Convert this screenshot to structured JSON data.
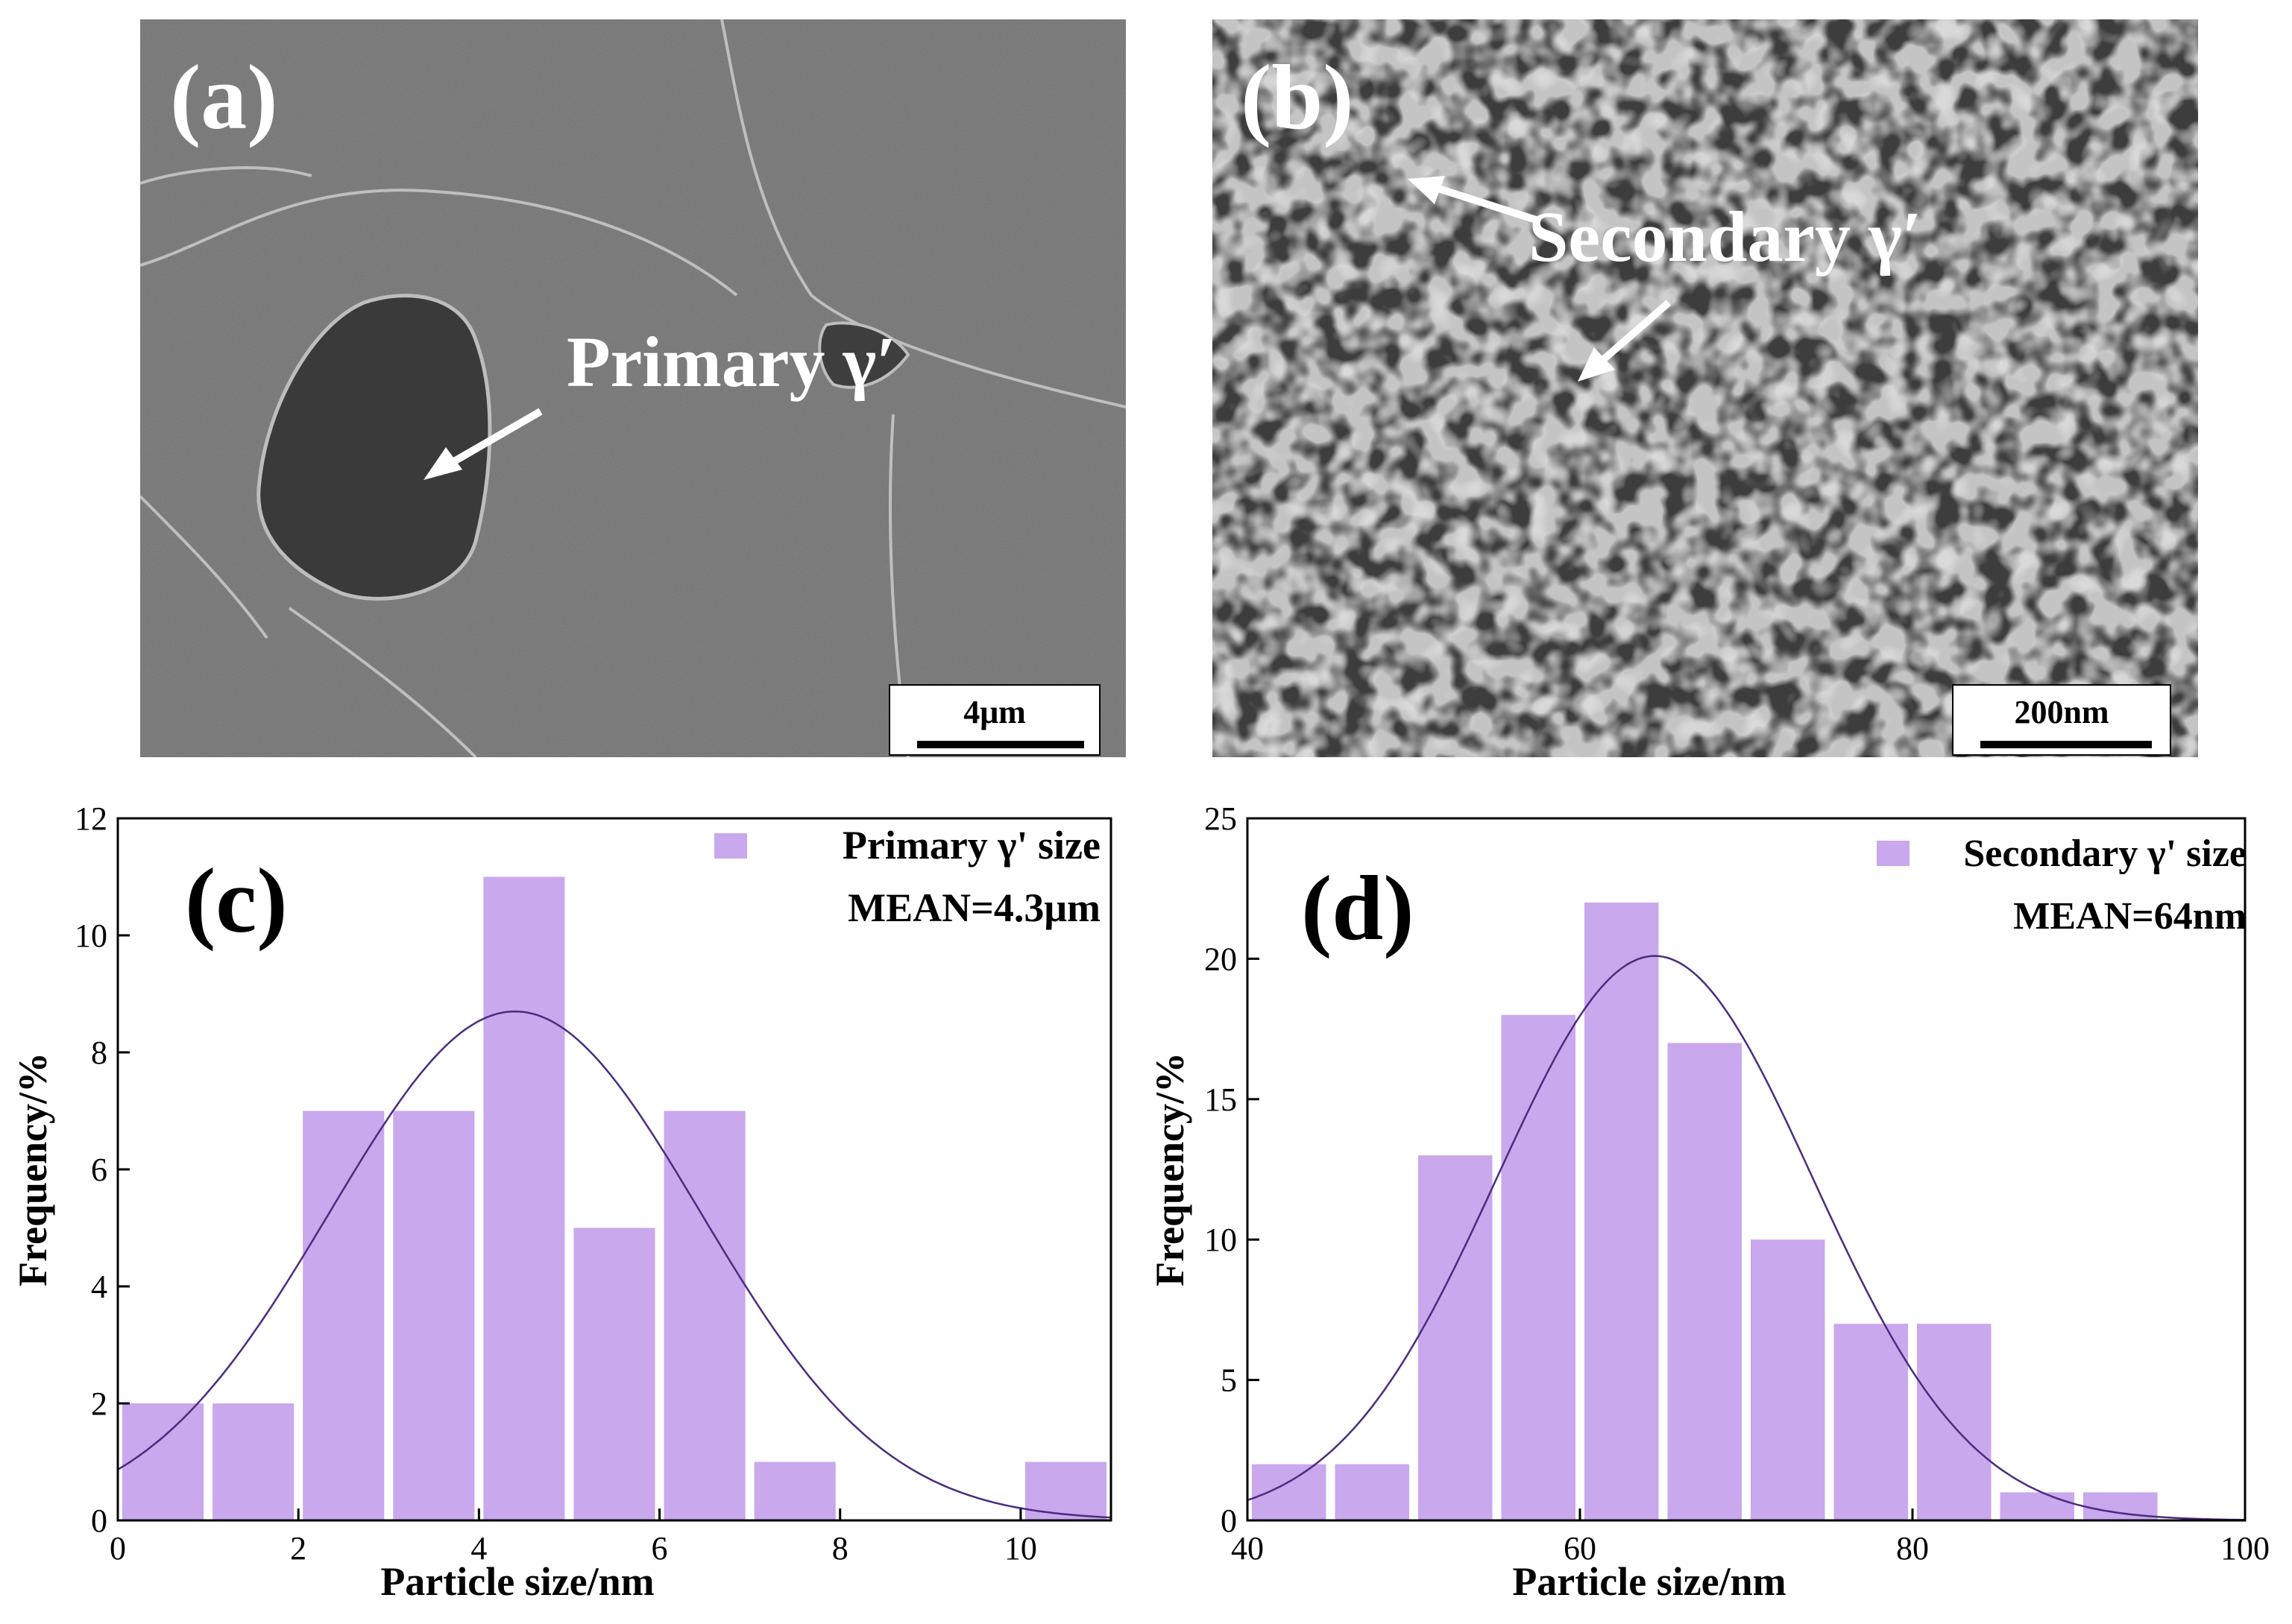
{
  "panel_a": {
    "letter": "(a)",
    "label": "Primary γ′",
    "scale": "4μm"
  },
  "panel_b": {
    "letter": "(b)",
    "label": "Secondary γ′",
    "scale": "200nm"
  },
  "chart_data": [
    {
      "type": "bar",
      "panel": "(c)",
      "legend": "Primary γ' size",
      "mean_label": "MEAN=4.3μm",
      "xlabel": "Particle size/nm",
      "ylabel": "Frequency/%",
      "xlim": [
        0,
        11
      ],
      "ylim": [
        0,
        12
      ],
      "xticks": [
        0,
        2,
        4,
        6,
        8,
        10
      ],
      "yticks": [
        0,
        2,
        4,
        6,
        8,
        10,
        12
      ],
      "bin_width": 1,
      "bins": [
        0,
        1,
        2,
        3,
        4,
        5,
        6,
        7,
        10
      ],
      "values": [
        2,
        2,
        7,
        7,
        11,
        5,
        7,
        1,
        1
      ],
      "fit": {
        "type": "normal",
        "mean": 4.4,
        "sd": 2.05,
        "peak": 8.7
      },
      "bar_color": "#c9a8ee",
      "curve_color": "#4b2c7f"
    },
    {
      "type": "bar",
      "panel": "(d)",
      "legend": "Secondary γ' size",
      "mean_label": "MEAN=64nm",
      "xlabel": "Particle size/nm",
      "ylabel": "Frequency/%",
      "xlim": [
        40,
        100
      ],
      "ylim": [
        0,
        25
      ],
      "xticks": [
        40,
        60,
        80,
        100
      ],
      "yticks": [
        0,
        5,
        10,
        15,
        20,
        25
      ],
      "bin_width": 5,
      "bins": [
        40,
        45,
        50,
        55,
        60,
        65,
        70,
        75,
        80,
        85,
        90
      ],
      "values": [
        2,
        2,
        13,
        18,
        22,
        17,
        10,
        7,
        7,
        1,
        1
      ],
      "fit": {
        "type": "normal",
        "mean": 64.5,
        "sd": 9.5,
        "peak": 20.1
      },
      "bar_color": "#c9a8ee",
      "curve_color": "#4b2c7f"
    }
  ]
}
